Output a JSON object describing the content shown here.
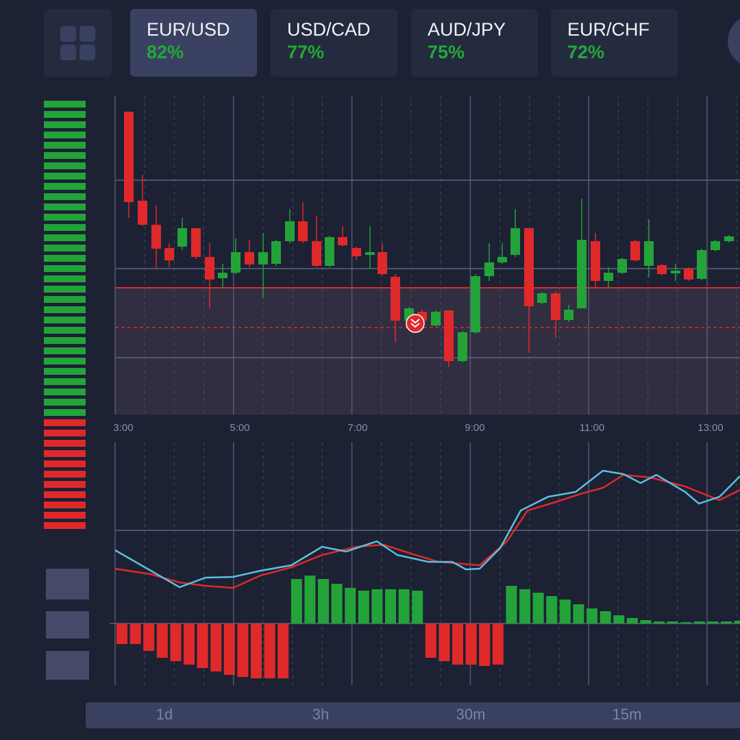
{
  "tabs": [
    {
      "pair": "EUR/USD",
      "rate": "82%"
    },
    {
      "pair": "USD/CAD",
      "rate": "77%"
    },
    {
      "pair": "AUD/JPY",
      "rate": "75%"
    },
    {
      "pair": "EUR/CHF",
      "rate": "72%"
    }
  ],
  "time_axis": [
    "3:00",
    "5:00",
    "7:00",
    "9:00",
    "11:00",
    "13:00"
  ],
  "timeframes": [
    "1d",
    "3h",
    "30m",
    "15m"
  ]
}
